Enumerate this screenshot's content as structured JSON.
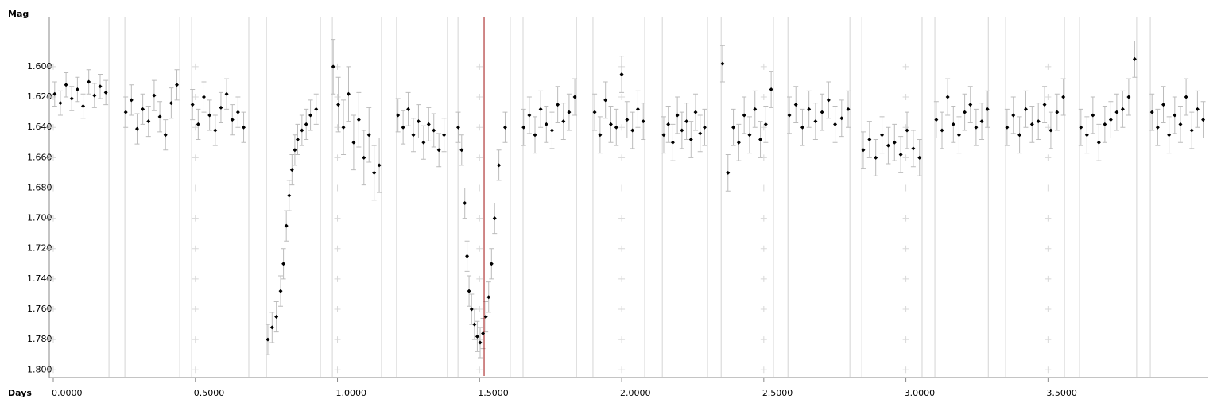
{
  "chart_data": {
    "type": "scatter",
    "y_label": "Mag",
    "x_label": "Days",
    "xlim": [
      -0.014,
      4.064
    ],
    "xticks": [
      {
        "value": 0,
        "label": "0.0000"
      },
      {
        "value": 0.5,
        "label": "0.5000"
      },
      {
        "value": 1,
        "label": "1.0000"
      },
      {
        "value": 1.5,
        "label": "1.5000"
      },
      {
        "value": 2,
        "label": "2.0000"
      },
      {
        "value": 2.5,
        "label": "2.5000"
      },
      {
        "value": 3,
        "label": "3.0000"
      },
      {
        "value": 3.5,
        "label": "3.5000"
      }
    ],
    "ylim": [
      1.567,
      1.803
    ],
    "y_inverted": true,
    "yticks": [
      {
        "value": 1.6,
        "label": "1.600"
      },
      {
        "value": 1.62,
        "label": "1.620"
      },
      {
        "value": 1.64,
        "label": "1.640"
      },
      {
        "value": 1.66,
        "label": "1.660"
      },
      {
        "value": 1.68,
        "label": "1.680"
      },
      {
        "value": 1.7,
        "label": "1.700"
      },
      {
        "value": 1.72,
        "label": "1.720"
      },
      {
        "value": 1.74,
        "label": "1.740"
      },
      {
        "value": 1.76,
        "label": "1.760"
      },
      {
        "value": 1.78,
        "label": "1.780"
      },
      {
        "value": 1.8,
        "label": "1.800"
      }
    ],
    "grid": "crosses",
    "color": "#000000",
    "error_color": "#bcbcbc",
    "boundaries": [
      0.196,
      0.252,
      0.445,
      0.487,
      0.688,
      0.75,
      0.94,
      0.982,
      1.155,
      1.208,
      1.387,
      1.424,
      1.608,
      1.653,
      1.841,
      1.899,
      2.081,
      2.143,
      2.302,
      2.35,
      2.534,
      2.585,
      2.803,
      2.845,
      3.057,
      3.102,
      3.29,
      3.351,
      3.558,
      3.611,
      3.812,
      3.86
    ],
    "cursor": {
      "value": 1.516,
      "color": "#a01010"
    },
    "x": [
      0.005,
      0.025,
      0.045,
      0.065,
      0.085,
      0.105,
      0.125,
      0.145,
      0.165,
      0.185,
      0.255,
      0.275,
      0.295,
      0.315,
      0.335,
      0.355,
      0.375,
      0.395,
      0.415,
      0.435,
      0.49,
      0.51,
      0.53,
      0.55,
      0.57,
      0.59,
      0.61,
      0.63,
      0.65,
      0.67,
      0.755,
      0.77,
      0.785,
      0.8,
      0.81,
      0.82,
      0.83,
      0.84,
      0.85,
      0.86,
      0.875,
      0.89,
      0.905,
      0.925,
      0.985,
      1.003,
      1.021,
      1.039,
      1.057,
      1.075,
      1.093,
      1.111,
      1.129,
      1.147,
      1.213,
      1.231,
      1.249,
      1.267,
      1.285,
      1.303,
      1.321,
      1.339,
      1.357,
      1.375,
      1.425,
      1.437,
      1.448,
      1.456,
      1.463,
      1.472,
      1.482,
      1.492,
      1.502,
      1.512,
      1.522,
      1.532,
      1.542,
      1.553,
      1.568,
      1.59,
      1.655,
      1.675,
      1.695,
      1.715,
      1.735,
      1.755,
      1.775,
      1.795,
      1.815,
      1.835,
      1.905,
      1.924,
      1.943,
      1.962,
      1.981,
      2.0,
      2.019,
      2.038,
      2.057,
      2.076,
      2.148,
      2.164,
      2.18,
      2.196,
      2.212,
      2.228,
      2.244,
      2.26,
      2.276,
      2.292,
      2.355,
      2.374,
      2.393,
      2.412,
      2.431,
      2.45,
      2.469,
      2.488,
      2.507,
      2.526,
      2.59,
      2.613,
      2.636,
      2.659,
      2.682,
      2.705,
      2.728,
      2.751,
      2.774,
      2.797,
      2.85,
      2.872,
      2.894,
      2.916,
      2.938,
      2.96,
      2.982,
      3.004,
      3.026,
      3.048,
      3.107,
      3.127,
      3.147,
      3.167,
      3.187,
      3.207,
      3.227,
      3.247,
      3.267,
      3.287,
      3.356,
      3.378,
      3.4,
      3.422,
      3.444,
      3.466,
      3.488,
      3.51,
      3.532,
      3.554,
      3.616,
      3.637,
      3.658,
      3.679,
      3.7,
      3.721,
      3.742,
      3.763,
      3.784,
      3.805,
      3.866,
      3.886,
      3.906,
      3.926,
      3.946,
      3.966,
      3.986,
      4.006,
      4.026,
      4.046
    ],
    "values": [
      1.618,
      1.624,
      1.612,
      1.621,
      1.615,
      1.626,
      1.61,
      1.619,
      1.613,
      1.617,
      1.63,
      1.622,
      1.641,
      1.628,
      1.636,
      1.619,
      1.633,
      1.645,
      1.624,
      1.612,
      1.625,
      1.638,
      1.62,
      1.632,
      1.642,
      1.627,
      1.618,
      1.635,
      1.63,
      1.64,
      1.78,
      1.772,
      1.765,
      1.748,
      1.73,
      1.705,
      1.685,
      1.668,
      1.655,
      1.648,
      1.642,
      1.638,
      1.632,
      1.628,
      1.6,
      1.625,
      1.64,
      1.618,
      1.65,
      1.635,
      1.66,
      1.645,
      1.67,
      1.665,
      1.632,
      1.64,
      1.628,
      1.645,
      1.636,
      1.65,
      1.638,
      1.642,
      1.655,
      1.645,
      1.64,
      1.655,
      1.69,
      1.725,
      1.748,
      1.76,
      1.77,
      1.778,
      1.782,
      1.776,
      1.765,
      1.752,
      1.73,
      1.7,
      1.665,
      1.64,
      1.64,
      1.632,
      1.645,
      1.628,
      1.638,
      1.642,
      1.625,
      1.636,
      1.63,
      1.62,
      1.63,
      1.645,
      1.622,
      1.638,
      1.64,
      1.605,
      1.635,
      1.642,
      1.628,
      1.636,
      1.645,
      1.638,
      1.65,
      1.632,
      1.642,
      1.636,
      1.648,
      1.63,
      1.644,
      1.64,
      1.598,
      1.67,
      1.64,
      1.65,
      1.632,
      1.645,
      1.628,
      1.648,
      1.638,
      1.615,
      1.632,
      1.625,
      1.64,
      1.628,
      1.636,
      1.63,
      1.622,
      1.638,
      1.634,
      1.628,
      1.655,
      1.648,
      1.66,
      1.645,
      1.652,
      1.65,
      1.658,
      1.642,
      1.654,
      1.66,
      1.635,
      1.642,
      1.62,
      1.638,
      1.645,
      1.63,
      1.625,
      1.64,
      1.636,
      1.628,
      1.64,
      1.632,
      1.645,
      1.628,
      1.638,
      1.636,
      1.625,
      1.642,
      1.63,
      1.62,
      1.64,
      1.645,
      1.632,
      1.65,
      1.638,
      1.635,
      1.63,
      1.628,
      1.62,
      1.595,
      1.63,
      1.64,
      1.625,
      1.645,
      1.632,
      1.638,
      1.62,
      1.642,
      1.628,
      1.635
    ],
    "errors": [
      0.008,
      0.008,
      0.008,
      0.008,
      0.008,
      0.008,
      0.008,
      0.008,
      0.008,
      0.008,
      0.01,
      0.01,
      0.01,
      0.01,
      0.01,
      0.01,
      0.01,
      0.01,
      0.01,
      0.01,
      0.01,
      0.01,
      0.01,
      0.01,
      0.01,
      0.01,
      0.01,
      0.01,
      0.01,
      0.01,
      0.01,
      0.01,
      0.01,
      0.01,
      0.01,
      0.01,
      0.01,
      0.01,
      0.01,
      0.01,
      0.01,
      0.01,
      0.01,
      0.01,
      0.018,
      0.018,
      0.018,
      0.018,
      0.018,
      0.018,
      0.018,
      0.018,
      0.018,
      0.018,
      0.011,
      0.011,
      0.011,
      0.011,
      0.011,
      0.011,
      0.011,
      0.011,
      0.011,
      0.011,
      0.01,
      0.01,
      0.01,
      0.01,
      0.01,
      0.01,
      0.01,
      0.01,
      0.01,
      0.01,
      0.01,
      0.01,
      0.01,
      0.01,
      0.01,
      0.01,
      0.012,
      0.012,
      0.012,
      0.012,
      0.012,
      0.012,
      0.012,
      0.012,
      0.012,
      0.012,
      0.012,
      0.012,
      0.012,
      0.012,
      0.012,
      0.012,
      0.012,
      0.012,
      0.012,
      0.012,
      0.012,
      0.012,
      0.012,
      0.012,
      0.012,
      0.012,
      0.012,
      0.012,
      0.012,
      0.012,
      0.012,
      0.012,
      0.012,
      0.012,
      0.012,
      0.012,
      0.012,
      0.012,
      0.012,
      0.012,
      0.012,
      0.012,
      0.012,
      0.012,
      0.012,
      0.012,
      0.012,
      0.012,
      0.012,
      0.012,
      0.012,
      0.012,
      0.012,
      0.012,
      0.012,
      0.012,
      0.012,
      0.012,
      0.012,
      0.012,
      0.012,
      0.012,
      0.012,
      0.012,
      0.012,
      0.012,
      0.012,
      0.012,
      0.012,
      0.012,
      0.012,
      0.012,
      0.012,
      0.012,
      0.012,
      0.012,
      0.012,
      0.012,
      0.012,
      0.012,
      0.012,
      0.012,
      0.012,
      0.012,
      0.012,
      0.012,
      0.012,
      0.012,
      0.012,
      0.012,
      0.012,
      0.012,
      0.012,
      0.012,
      0.012,
      0.012,
      0.012,
      0.012,
      0.012,
      0.012
    ]
  }
}
